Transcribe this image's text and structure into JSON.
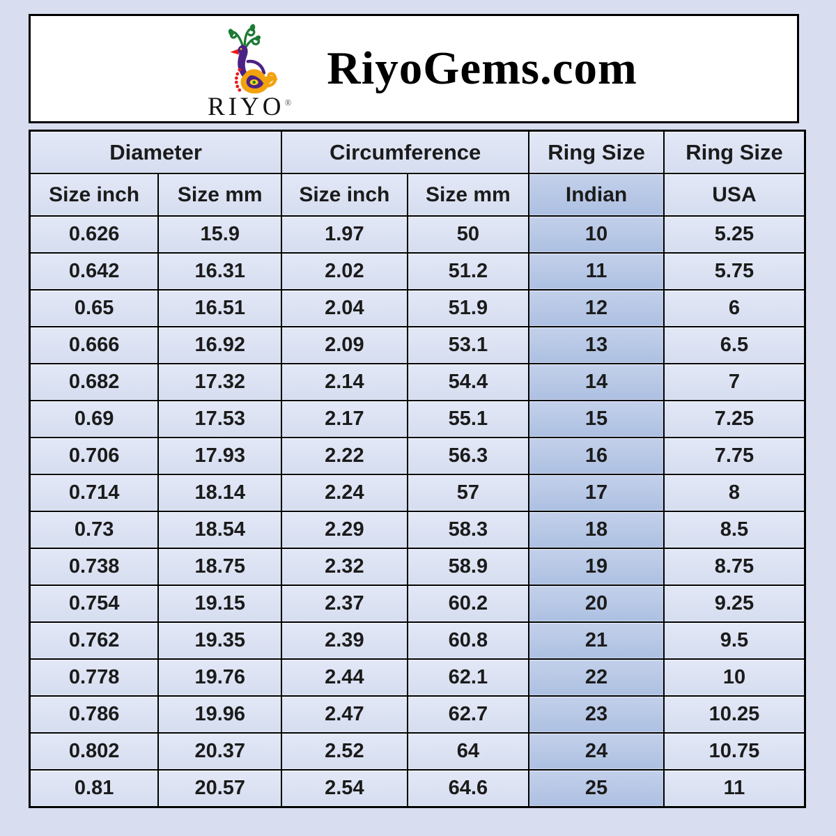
{
  "page": {
    "background_color": "#d8ddef",
    "cell_color": "#dde3f3",
    "highlight_color": "#b9c9e6",
    "border_color": "#000000"
  },
  "header": {
    "brand": "RiyoGems.com",
    "logo": {
      "word": "RIYO",
      "registered_mark": "®",
      "icon": "peacock-icon",
      "colors": {
        "crest_green": "#1c7a33",
        "body_purple": "#4b2185",
        "paisley_orange": "#f2a20d",
        "beak_red": "#e8191c",
        "eye_yellow": "#f7d21e"
      }
    }
  },
  "table": {
    "groups": [
      {
        "label": "Diameter",
        "span": 2
      },
      {
        "label": "Circumference",
        "span": 2
      },
      {
        "label": "Ring Size",
        "span": 1
      },
      {
        "label": "Ring Size",
        "span": 1
      }
    ],
    "columns": [
      "Size inch",
      "Size mm",
      "Size inch",
      "Size mm",
      "Indian",
      "USA"
    ],
    "highlight_column_index": 4,
    "rows": [
      [
        "0.626",
        "15.9",
        "1.97",
        "50",
        "10",
        "5.25"
      ],
      [
        "0.642",
        "16.31",
        "2.02",
        "51.2",
        "11",
        "5.75"
      ],
      [
        "0.65",
        "16.51",
        "2.04",
        "51.9",
        "12",
        "6"
      ],
      [
        "0.666",
        "16.92",
        "2.09",
        "53.1",
        "13",
        "6.5"
      ],
      [
        "0.682",
        "17.32",
        "2.14",
        "54.4",
        "14",
        "7"
      ],
      [
        "0.69",
        "17.53",
        "2.17",
        "55.1",
        "15",
        "7.25"
      ],
      [
        "0.706",
        "17.93",
        "2.22",
        "56.3",
        "16",
        "7.75"
      ],
      [
        "0.714",
        "18.14",
        "2.24",
        "57",
        "17",
        "8"
      ],
      [
        "0.73",
        "18.54",
        "2.29",
        "58.3",
        "18",
        "8.5"
      ],
      [
        "0.738",
        "18.75",
        "2.32",
        "58.9",
        "19",
        "8.75"
      ],
      [
        "0.754",
        "19.15",
        "2.37",
        "60.2",
        "20",
        "9.25"
      ],
      [
        "0.762",
        "19.35",
        "2.39",
        "60.8",
        "21",
        "9.5"
      ],
      [
        "0.778",
        "19.76",
        "2.44",
        "62.1",
        "22",
        "10"
      ],
      [
        "0.786",
        "19.96",
        "2.47",
        "62.7",
        "23",
        "10.25"
      ],
      [
        "0.802",
        "20.37",
        "2.52",
        "64",
        "24",
        "10.75"
      ],
      [
        "0.81",
        "20.57",
        "2.54",
        "64.6",
        "25",
        "11"
      ]
    ]
  },
  "chart_data": {
    "type": "table",
    "title": "RiyoGems.com ring size conversion chart",
    "column_groups": [
      "Diameter",
      "Diameter",
      "Circumference",
      "Circumference",
      "Ring Size",
      "Ring Size"
    ],
    "columns": [
      "Diameter Size inch",
      "Diameter Size mm",
      "Circumference Size inch",
      "Circumference Size mm",
      "Ring Size Indian",
      "Ring Size USA"
    ],
    "rows": [
      [
        0.626,
        15.9,
        1.97,
        50,
        10,
        5.25
      ],
      [
        0.642,
        16.31,
        2.02,
        51.2,
        11,
        5.75
      ],
      [
        0.65,
        16.51,
        2.04,
        51.9,
        12,
        6
      ],
      [
        0.666,
        16.92,
        2.09,
        53.1,
        13,
        6.5
      ],
      [
        0.682,
        17.32,
        2.14,
        54.4,
        14,
        7
      ],
      [
        0.69,
        17.53,
        2.17,
        55.1,
        15,
        7.25
      ],
      [
        0.706,
        17.93,
        2.22,
        56.3,
        16,
        7.75
      ],
      [
        0.714,
        18.14,
        2.24,
        57,
        17,
        8
      ],
      [
        0.73,
        18.54,
        2.29,
        58.3,
        18,
        8.5
      ],
      [
        0.738,
        18.75,
        2.32,
        58.9,
        19,
        8.75
      ],
      [
        0.754,
        19.15,
        2.37,
        60.2,
        20,
        9.25
      ],
      [
        0.762,
        19.35,
        2.39,
        60.8,
        21,
        9.5
      ],
      [
        0.778,
        19.76,
        2.44,
        62.1,
        22,
        10
      ],
      [
        0.786,
        19.96,
        2.47,
        62.7,
        23,
        10.25
      ],
      [
        0.802,
        20.37,
        2.52,
        64,
        24,
        10.75
      ],
      [
        0.81,
        20.57,
        2.54,
        64.6,
        25,
        11
      ]
    ],
    "highlighted_column": "Ring Size Indian",
    "grid": true,
    "legend_position": "none"
  }
}
